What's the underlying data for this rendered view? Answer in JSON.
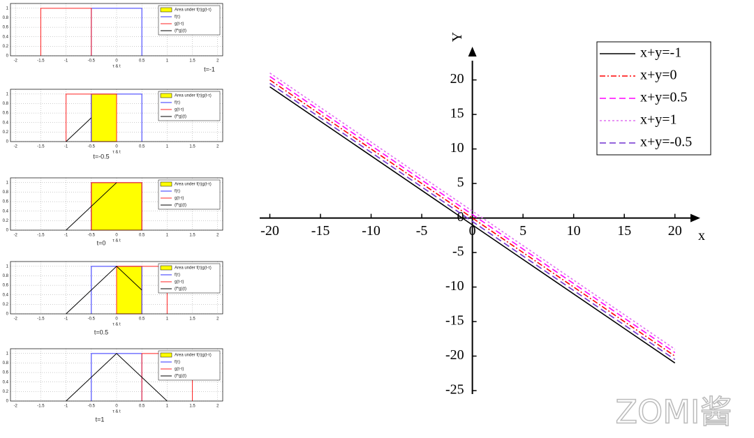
{
  "chart_data": [
    {
      "type": "line",
      "annotation": "t=-1",
      "xlabel": "τ & t",
      "xlim": [
        -2.1,
        2.1
      ],
      "ylim": [
        0,
        1.1
      ],
      "xticks": [
        -2,
        -1.5,
        -1,
        -0.5,
        0,
        0.5,
        1,
        1.5,
        2
      ],
      "yticks": [
        0,
        0.2,
        0.4,
        0.6,
        0.8,
        1
      ],
      "grid": true,
      "series": [
        {
          "name": "Area under f(τ)g(t-τ)",
          "color": "#ffff00",
          "fill": true,
          "x": [],
          "values": []
        },
        {
          "name": "f(τ)",
          "color": "#3030ff",
          "x": [
            -0.5,
            -0.5,
            0.5,
            0.5
          ],
          "values": [
            0,
            1,
            1,
            0
          ]
        },
        {
          "name": "g(t-τ)",
          "color": "#ff2020",
          "x": [
            -1.5,
            -1.5,
            -0.5,
            -0.5
          ],
          "values": [
            0,
            1,
            1,
            0
          ]
        },
        {
          "name": "(f*g)(t)",
          "color": "#000000",
          "x": [],
          "values": []
        }
      ]
    },
    {
      "type": "line",
      "annotation": "t=-0.5",
      "xlabel": "τ & t",
      "xlim": [
        -2.1,
        2.1
      ],
      "ylim": [
        0,
        1.1
      ],
      "xticks": [
        -2,
        -1.5,
        -1,
        -0.5,
        0,
        0.5,
        1,
        1.5,
        2
      ],
      "yticks": [
        0,
        0.2,
        0.4,
        0.6,
        0.8,
        1
      ],
      "grid": true,
      "series": [
        {
          "name": "Area under f(τ)g(t-τ)",
          "color": "#ffff00",
          "fill": true,
          "x": [
            -0.5,
            -0.5,
            0,
            0
          ],
          "values": [
            0,
            1,
            1,
            0
          ]
        },
        {
          "name": "f(τ)",
          "color": "#3030ff",
          "x": [
            -0.5,
            -0.5,
            0.5,
            0.5
          ],
          "values": [
            0,
            1,
            1,
            0
          ]
        },
        {
          "name": "g(t-τ)",
          "color": "#ff2020",
          "x": [
            -1,
            -1,
            0,
            0
          ],
          "values": [
            0,
            1,
            1,
            0
          ]
        },
        {
          "name": "(f*g)(t)",
          "color": "#000000",
          "x": [
            -1,
            -0.5
          ],
          "values": [
            0,
            0.5
          ]
        }
      ]
    },
    {
      "type": "line",
      "annotation": "t=0",
      "xlabel": "τ & t",
      "xlim": [
        -2.1,
        2.1
      ],
      "ylim": [
        0,
        1.1
      ],
      "xticks": [
        -2,
        -1.5,
        -1,
        -0.5,
        0,
        0.5,
        1,
        1.5,
        2
      ],
      "yticks": [
        0,
        0.2,
        0.4,
        0.6,
        0.8,
        1
      ],
      "grid": true,
      "series": [
        {
          "name": "Area under f(τ)g(t-τ)",
          "color": "#ffff00",
          "fill": true,
          "x": [
            -0.5,
            -0.5,
            0.5,
            0.5
          ],
          "values": [
            0,
            1,
            1,
            0
          ]
        },
        {
          "name": "f(τ)",
          "color": "#3030ff",
          "x": [
            -0.5,
            -0.5,
            0.5,
            0.5
          ],
          "values": [
            0,
            1,
            1,
            0
          ]
        },
        {
          "name": "g(t-τ)",
          "color": "#ff2020",
          "x": [
            -0.5,
            -0.5,
            0.5,
            0.5
          ],
          "values": [
            0,
            1,
            1,
            0
          ]
        },
        {
          "name": "(f*g)(t)",
          "color": "#000000",
          "x": [
            -1,
            0
          ],
          "values": [
            0,
            1
          ]
        }
      ]
    },
    {
      "type": "line",
      "annotation": "t=0.5",
      "xlabel": "τ & t",
      "xlim": [
        -2.1,
        2.1
      ],
      "ylim": [
        0,
        1.1
      ],
      "xticks": [
        -2,
        -1.5,
        -1,
        -0.5,
        0,
        0.5,
        1,
        1.5,
        2
      ],
      "yticks": [
        0,
        0.2,
        0.4,
        0.6,
        0.8,
        1
      ],
      "grid": true,
      "series": [
        {
          "name": "Area under f(τ)g(t-τ)",
          "color": "#ffff00",
          "fill": true,
          "x": [
            0,
            0,
            0.5,
            0.5
          ],
          "values": [
            0,
            1,
            1,
            0
          ]
        },
        {
          "name": "f(τ)",
          "color": "#3030ff",
          "x": [
            -0.5,
            -0.5,
            0.5,
            0.5
          ],
          "values": [
            0,
            1,
            1,
            0
          ]
        },
        {
          "name": "g(t-τ)",
          "color": "#ff2020",
          "x": [
            0,
            0,
            1,
            1
          ],
          "values": [
            0,
            1,
            1,
            0
          ]
        },
        {
          "name": "(f*g)(t)",
          "color": "#000000",
          "x": [
            -1,
            0,
            0.5
          ],
          "values": [
            0,
            1,
            0.5
          ]
        }
      ]
    },
    {
      "type": "line",
      "annotation": "t=1",
      "xlabel": "τ & t",
      "xlim": [
        -2.1,
        2.1
      ],
      "ylim": [
        0,
        1.1
      ],
      "xticks": [
        -2,
        -1.5,
        -1,
        -0.5,
        0,
        0.5,
        1,
        1.5,
        2
      ],
      "yticks": [
        0,
        0.2,
        0.4,
        0.6,
        0.8,
        1
      ],
      "grid": true,
      "series": [
        {
          "name": "Area under f(τ)g(t-τ)",
          "color": "#ffff00",
          "fill": true,
          "x": [],
          "values": []
        },
        {
          "name": "f(τ)",
          "color": "#3030ff",
          "x": [
            -0.5,
            -0.5,
            0.5,
            0.5
          ],
          "values": [
            0,
            1,
            1,
            0
          ]
        },
        {
          "name": "g(t-τ)",
          "color": "#ff2020",
          "x": [
            0.5,
            0.5,
            1.5,
            1.5
          ],
          "values": [
            0,
            1,
            1,
            0
          ]
        },
        {
          "name": "(f*g)(t)",
          "color": "#000000",
          "x": [
            -1,
            0,
            1
          ],
          "values": [
            0,
            1,
            0
          ]
        }
      ]
    },
    {
      "type": "line",
      "xlabel": "x",
      "ylabel": "Y",
      "xlim": [
        -21,
        22.5
      ],
      "ylim": [
        -25.5,
        24
      ],
      "xticks": [
        -20,
        -15,
        -10,
        -5,
        0,
        5,
        10,
        15,
        20
      ],
      "yticks": [
        -25,
        -20,
        -15,
        -10,
        -5,
        0,
        5,
        10,
        15,
        20
      ],
      "grid": false,
      "series": [
        {
          "name": "x+y=-1",
          "color": "#000000",
          "dash": "solid",
          "x": [
            -20,
            20
          ],
          "values": [
            19,
            -21
          ]
        },
        {
          "name": "x+y=0",
          "color": "#ff0000",
          "dash": "dashdot",
          "x": [
            -20,
            20
          ],
          "values": [
            20,
            -20
          ]
        },
        {
          "name": "x+y=0.5",
          "color": "#ff00ff",
          "dash": "dashed",
          "x": [
            -20,
            20
          ],
          "values": [
            20.5,
            -19.5
          ]
        },
        {
          "name": "x+y=1",
          "color": "#e070f0",
          "dash": "dotted",
          "x": [
            -20,
            20
          ],
          "values": [
            21,
            -19
          ]
        },
        {
          "name": "x+y=-0.5",
          "color": "#7030d0",
          "dash": "dashed",
          "x": [
            -20,
            20
          ],
          "values": [
            19.5,
            -20.5
          ]
        }
      ]
    }
  ],
  "watermark": "ZOMI酱"
}
